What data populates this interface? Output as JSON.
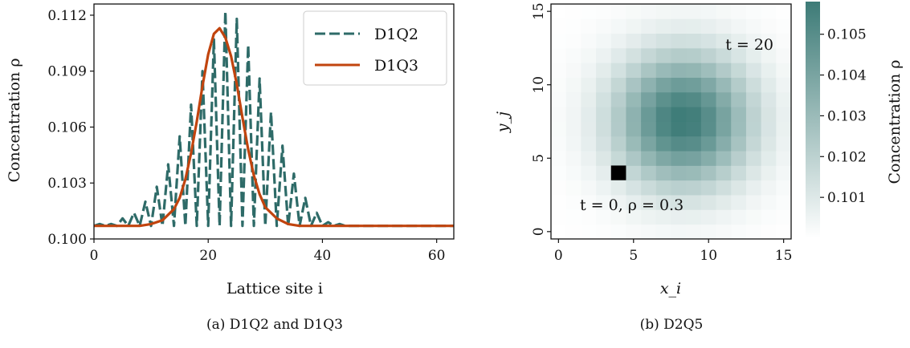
{
  "captions": {
    "a": "(a) D1Q2 and D1Q3",
    "b": "(b) D2Q5"
  },
  "colors": {
    "d1q2": "#2e6b68",
    "d1q3": "#c1440e",
    "heat_max": "#3d7b77"
  },
  "chart_data": [
    {
      "type": "line",
      "xlabel": "Lattice site i",
      "ylabel": "Concentration ρ",
      "xlim": [
        0,
        63
      ],
      "ylim": [
        0.1,
        0.1126
      ],
      "xticks": [
        0,
        20,
        40,
        60
      ],
      "yticks": [
        "0.100",
        "0.103",
        "0.106",
        "0.109",
        "0.112"
      ],
      "legend_position": "top-right",
      "series": [
        {
          "name": "D1Q2",
          "style": "dashed",
          "x": [
            0,
            1,
            2,
            3,
            4,
            5,
            6,
            7,
            8,
            9,
            10,
            11,
            12,
            13,
            14,
            15,
            16,
            17,
            18,
            19,
            20,
            21,
            22,
            23,
            24,
            25,
            26,
            27,
            28,
            29,
            30,
            31,
            32,
            33,
            34,
            35,
            36,
            37,
            38,
            39,
            40,
            41,
            42,
            43,
            44,
            45,
            46,
            47,
            48,
            49,
            50,
            51,
            52,
            53,
            54,
            55,
            56,
            57,
            58,
            59,
            60,
            61,
            62,
            63
          ],
          "y": [
            0.1007,
            0.1008,
            0.1007,
            0.1008,
            0.1007,
            0.1011,
            0.1007,
            0.1014,
            0.1007,
            0.102,
            0.1007,
            0.1028,
            0.1007,
            0.104,
            0.1007,
            0.1055,
            0.1007,
            0.1072,
            0.1007,
            0.109,
            0.1007,
            0.1107,
            0.1007,
            0.1122,
            0.1007,
            0.1118,
            0.1007,
            0.1104,
            0.1007,
            0.1086,
            0.1007,
            0.1068,
            0.1007,
            0.105,
            0.1007,
            0.1035,
            0.1007,
            0.1022,
            0.1007,
            0.1014,
            0.1007,
            0.1009,
            0.1007,
            0.1008,
            0.1007,
            0.1007,
            0.1007,
            0.1007,
            0.1007,
            0.1007,
            0.1007,
            0.1007,
            0.1007,
            0.1007,
            0.1007,
            0.1007,
            0.1007,
            0.1007,
            0.1007,
            0.1007,
            0.1007,
            0.1007,
            0.1007,
            0.1007
          ]
        },
        {
          "name": "D1Q3",
          "style": "solid",
          "x": [
            0,
            2,
            4,
            6,
            8,
            10,
            12,
            14,
            15,
            16,
            17,
            18,
            19,
            20,
            21,
            22,
            23,
            24,
            25,
            26,
            27,
            28,
            29,
            30,
            32,
            34,
            36,
            38,
            40,
            42,
            44,
            50,
            56,
            63
          ],
          "y": [
            0.1007,
            0.1007,
            0.1007,
            0.1007,
            0.1007,
            0.1008,
            0.101,
            0.1016,
            0.1022,
            0.1032,
            0.1046,
            0.1063,
            0.1082,
            0.1099,
            0.111,
            0.1113,
            0.1108,
            0.1098,
            0.1083,
            0.1065,
            0.1048,
            0.1034,
            0.1024,
            0.1017,
            0.1011,
            0.1008,
            0.1007,
            0.1007,
            0.1007,
            0.1007,
            0.1007,
            0.1007,
            0.1007,
            0.1007
          ]
        }
      ]
    },
    {
      "type": "heatmap",
      "xlabel": "x_i",
      "ylabel": "y_j",
      "grid_size": 16,
      "xlim": [
        -0.5,
        15.5
      ],
      "ylim": [
        -0.5,
        15.5
      ],
      "xticks": [
        0,
        5,
        10,
        15
      ],
      "yticks": [
        0,
        5,
        10,
        15
      ],
      "center": [
        8.3,
        7.6
      ],
      "sigma": 3.2,
      "peak": 0.1058,
      "baseline": 0.1,
      "initial_cell": [
        4,
        4
      ],
      "initial_label": "t = 0, ρ = 0.3",
      "time_label": "t = 20",
      "colorbar": {
        "label": "Concentration ρ",
        "range": [
          0.1,
          0.1058
        ],
        "ticks": [
          "0.101",
          "0.102",
          "0.103",
          "0.104",
          "0.105"
        ]
      }
    }
  ]
}
